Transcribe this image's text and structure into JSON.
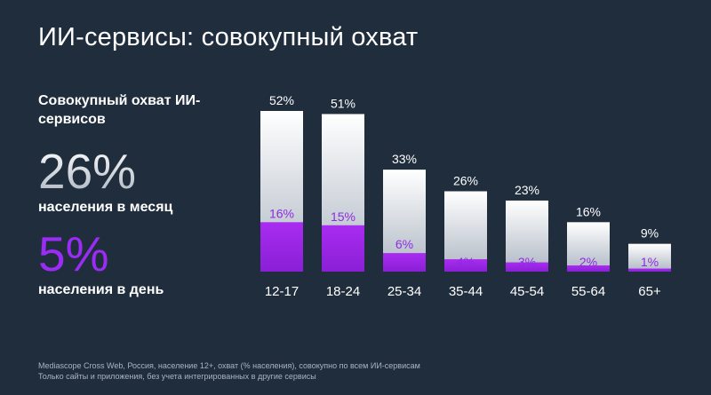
{
  "title": "ИИ-сервисы: совокупный охват",
  "summary": {
    "label": "Совокупный охват ИИ-сервисов",
    "monthly_value": "26%",
    "monthly_caption": "населения в месяц",
    "daily_value": "5%",
    "daily_caption": "населения в день"
  },
  "colors": {
    "background": "#1f2d3d",
    "monthly_bar_top": "#ffffff",
    "monthly_bar_bottom": "#aeb7c3",
    "daily_bar_top": "#a92cf0",
    "daily_bar_bottom": "#8a1fd6",
    "daily_label": "#8e2be0"
  },
  "chart_data": {
    "type": "bar",
    "categories": [
      "12-17",
      "18-24",
      "25-34",
      "35-44",
      "45-54",
      "55-64",
      "65+"
    ],
    "series": [
      {
        "name": "населения в месяц",
        "values": [
          52,
          51,
          33,
          26,
          23,
          16,
          9
        ]
      },
      {
        "name": "населения в день",
        "values": [
          16,
          15,
          6,
          4,
          3,
          2,
          1
        ]
      }
    ],
    "value_labels_monthly": [
      "52%",
      "51%",
      "33%",
      "26%",
      "23%",
      "16%",
      "9%"
    ],
    "value_labels_daily": [
      "16%",
      "15%",
      "6%",
      "4%",
      "3%",
      "2%",
      "1%"
    ],
    "overlay": true,
    "ylim": [
      0,
      52
    ],
    "grid": false,
    "legend": "none"
  },
  "footnote": {
    "line1": "Mediascope Cross Web, Россия, население 12+, охват (% населения), совокупно по всем ИИ-сервисам",
    "line2": "Только сайты и приложения, без учета интегрированных в другие сервисы"
  }
}
